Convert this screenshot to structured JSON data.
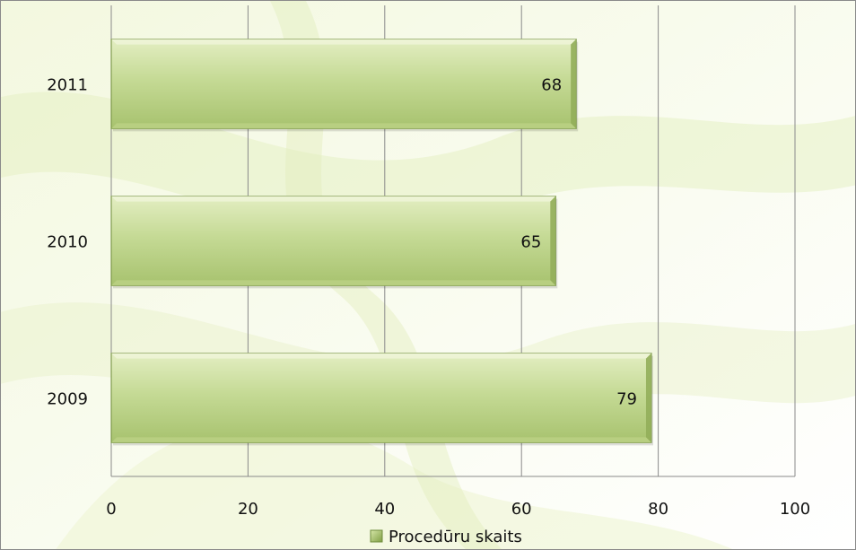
{
  "chart_data": {
    "type": "bar",
    "orientation": "horizontal",
    "categories": [
      "2011",
      "2010",
      "2009"
    ],
    "series": [
      {
        "name": "Procedūru skaits",
        "values": [
          68,
          65,
          79
        ]
      }
    ],
    "xlim": [
      0,
      100
    ],
    "x_ticks": [
      "0",
      "20",
      "40",
      "60",
      "80",
      "100"
    ],
    "data_labels": [
      "68",
      "65",
      "79"
    ],
    "title": "",
    "xlabel": "",
    "ylabel": "",
    "grid": "vertical major gridlines",
    "legend_position": "bottom",
    "colors": {
      "bar_light": "#d4e4a8",
      "bar_mid": "#b9d083",
      "bar_dark": "#92ae5a",
      "bar_edge": "#6f8c3c",
      "grid": "#8a8a8a"
    }
  }
}
